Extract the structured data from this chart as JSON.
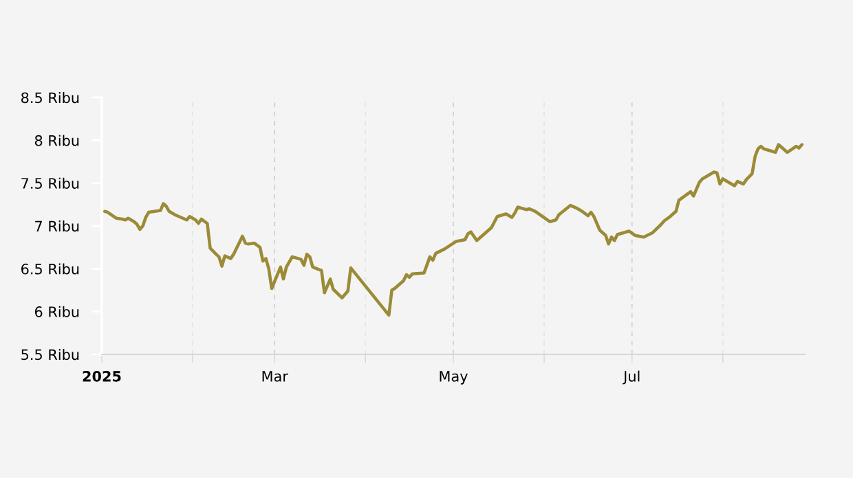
{
  "chart_data": {
    "type": "line",
    "x": [
      "2025-01-02",
      "2025-01-03",
      "2025-01-06",
      "2025-01-08",
      "2025-01-09",
      "2025-01-10",
      "2025-01-12",
      "2025-01-13",
      "2025-01-14",
      "2025-01-15",
      "2025-01-16",
      "2025-01-17",
      "2025-01-19",
      "2025-01-21",
      "2025-01-22",
      "2025-01-23",
      "2025-01-24",
      "2025-01-26",
      "2025-01-30",
      "2025-01-31",
      "2025-02-02",
      "2025-02-03",
      "2025-02-04",
      "2025-02-06",
      "2025-02-07",
      "2025-02-09",
      "2025-02-10",
      "2025-02-11",
      "2025-02-12",
      "2025-02-14",
      "2025-02-15",
      "2025-02-18",
      "2025-02-19",
      "2025-02-20",
      "2025-02-22",
      "2025-02-24",
      "2025-02-25",
      "2025-02-26",
      "2025-02-27",
      "2025-02-28",
      "2025-03-03",
      "2025-03-04",
      "2025-03-05",
      "2025-03-07",
      "2025-03-10",
      "2025-03-11",
      "2025-03-12",
      "2025-03-13",
      "2025-03-14",
      "2025-03-17",
      "2025-03-18",
      "2025-03-20",
      "2025-03-21",
      "2025-03-24",
      "2025-03-26",
      "2025-03-27",
      "2025-04-08",
      "2025-04-09",
      "2025-04-10",
      "2025-04-11",
      "2025-04-14",
      "2025-04-15",
      "2025-04-16",
      "2025-04-17",
      "2025-04-21",
      "2025-04-23",
      "2025-04-24",
      "2025-04-25",
      "2025-04-28",
      "2025-05-02",
      "2025-05-05",
      "2025-05-06",
      "2025-05-07",
      "2025-05-09",
      "2025-05-14",
      "2025-05-16",
      "2025-05-19",
      "2025-05-21",
      "2025-05-22",
      "2025-05-23",
      "2025-05-26",
      "2025-05-27",
      "2025-05-29",
      "2025-06-03",
      "2025-06-05",
      "2025-06-06",
      "2025-06-10",
      "2025-06-12",
      "2025-06-14",
      "2025-06-16",
      "2025-06-17",
      "2025-06-18",
      "2025-06-20",
      "2025-06-22",
      "2025-06-23",
      "2025-06-24",
      "2025-06-25",
      "2025-06-26",
      "2025-06-30",
      "2025-07-02",
      "2025-07-05",
      "2025-07-08",
      "2025-07-11",
      "2025-07-12",
      "2025-07-14",
      "2025-07-16",
      "2025-07-17",
      "2025-07-21",
      "2025-07-22",
      "2025-07-24",
      "2025-07-25",
      "2025-07-29",
      "2025-07-30",
      "2025-07-31",
      "2025-08-01",
      "2025-08-05",
      "2025-08-06",
      "2025-08-08",
      "2025-08-09",
      "2025-08-11",
      "2025-08-12",
      "2025-08-13",
      "2025-08-14",
      "2025-08-15",
      "2025-08-19",
      "2025-08-20",
      "2025-08-23",
      "2025-08-26",
      "2025-08-27",
      "2025-08-28"
    ],
    "series": [
      {
        "color": "#9b8b37",
        "values": [
          7.17,
          7.16,
          7.09,
          7.08,
          7.07,
          7.09,
          7.05,
          7.02,
          6.96,
          7.0,
          7.1,
          7.16,
          7.17,
          7.18,
          7.26,
          7.23,
          7.17,
          7.13,
          7.07,
          7.11,
          7.07,
          7.03,
          7.08,
          7.03,
          6.74,
          6.67,
          6.64,
          6.53,
          6.65,
          6.62,
          6.67,
          6.88,
          6.8,
          6.79,
          6.8,
          6.75,
          6.59,
          6.62,
          6.5,
          6.27,
          6.52,
          6.38,
          6.52,
          6.64,
          6.61,
          6.54,
          6.67,
          6.64,
          6.52,
          6.48,
          6.22,
          6.38,
          6.26,
          6.16,
          6.24,
          6.51,
          6.0,
          5.96,
          6.25,
          6.27,
          6.36,
          6.43,
          6.4,
          6.44,
          6.45,
          6.64,
          6.6,
          6.68,
          6.73,
          6.82,
          6.84,
          6.91,
          6.93,
          6.83,
          6.98,
          7.11,
          7.14,
          7.1,
          7.15,
          7.22,
          7.19,
          7.2,
          7.17,
          7.05,
          7.07,
          7.13,
          7.24,
          7.21,
          7.17,
          7.12,
          7.16,
          7.11,
          6.95,
          6.89,
          6.79,
          6.87,
          6.83,
          6.9,
          6.94,
          6.89,
          6.87,
          6.92,
          7.02,
          7.06,
          7.11,
          7.17,
          7.3,
          7.4,
          7.35,
          7.51,
          7.55,
          7.63,
          7.62,
          7.49,
          7.55,
          7.47,
          7.52,
          7.49,
          7.54,
          7.61,
          7.81,
          7.9,
          7.93,
          7.9,
          7.86,
          7.95,
          7.86,
          7.93,
          7.91,
          7.95
        ]
      }
    ],
    "xlim": [
      "2025-01-01",
      "2025-08-29"
    ],
    "xticks": [
      {
        "value": "2025-01-01",
        "label": "2025"
      },
      {
        "value": "2025-02-01",
        "label": null
      },
      {
        "value": "2025-03-01",
        "label": "Mar"
      },
      {
        "value": "2025-04-01",
        "label": null
      },
      {
        "value": "2025-05-01",
        "label": "May"
      },
      {
        "value": "2025-06-01",
        "label": null
      },
      {
        "value": "2025-07-01",
        "label": "Jul"
      },
      {
        "value": "2025-08-01",
        "label": null
      }
    ],
    "ylim": [
      5.5,
      8.5
    ],
    "yticks": [
      {
        "value": 5.5,
        "label": "5.5 Ribu"
      },
      {
        "value": 6,
        "label": "6 Ribu"
      },
      {
        "value": 6.5,
        "label": "6.5 Ribu"
      },
      {
        "value": 7,
        "label": "7 Ribu"
      },
      {
        "value": 7.5,
        "label": "7.5 Ribu"
      },
      {
        "value": 8,
        "label": "8 Ribu"
      },
      {
        "value": 8.5,
        "label": "8.5 Ribu"
      }
    ],
    "grid": "x"
  }
}
